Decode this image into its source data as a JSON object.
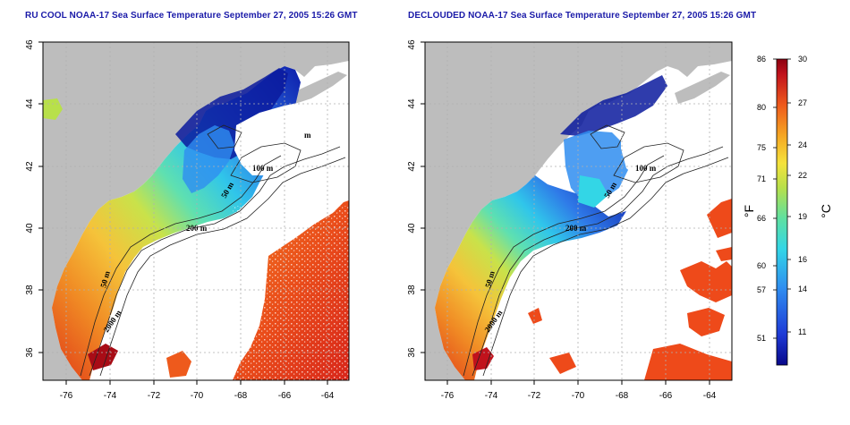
{
  "titles": {
    "left": "RU COOL NOAA-17 Sea Surface Temperature September 27, 2005 15:26 GMT",
    "right": "DECLOUDED NOAA-17 Sea Surface Temperature September 27, 2005 15:26 GMT"
  },
  "axes": {
    "x_ticks": [
      "-76",
      "-74",
      "-72",
      "-70",
      "-68",
      "-66",
      "-64"
    ],
    "y_ticks": [
      "36",
      "38",
      "40",
      "42",
      "44",
      "46"
    ]
  },
  "contour_labels": {
    "left": [
      "100 m",
      "50 m",
      "200 m",
      "50 m",
      "2000 m",
      "m"
    ],
    "right": [
      "100 m",
      "50 m",
      "200 m",
      "50 m",
      "2000 m"
    ]
  },
  "colorbar": {
    "fahrenheit": [
      "86",
      "80",
      "75",
      "71",
      "66",
      "60",
      "57",
      "51"
    ],
    "celsius": [
      "30",
      "27",
      "24",
      "22",
      "19",
      "16",
      "14",
      "11"
    ],
    "unit_f": "°F",
    "unit_c": "°C"
  },
  "colors": {
    "land": "#bdbdbd",
    "no_data": "#ffffff",
    "grid": "#b0b0b0",
    "title": "#1a1aa8",
    "sst_scale": [
      "#08088a",
      "#1e3ad6",
      "#2f8df0",
      "#33d6e6",
      "#5fe0a0",
      "#b8e04a",
      "#f5e23c",
      "#f5a623",
      "#ee5a1c",
      "#c1121c",
      "#8c0010"
    ]
  }
}
